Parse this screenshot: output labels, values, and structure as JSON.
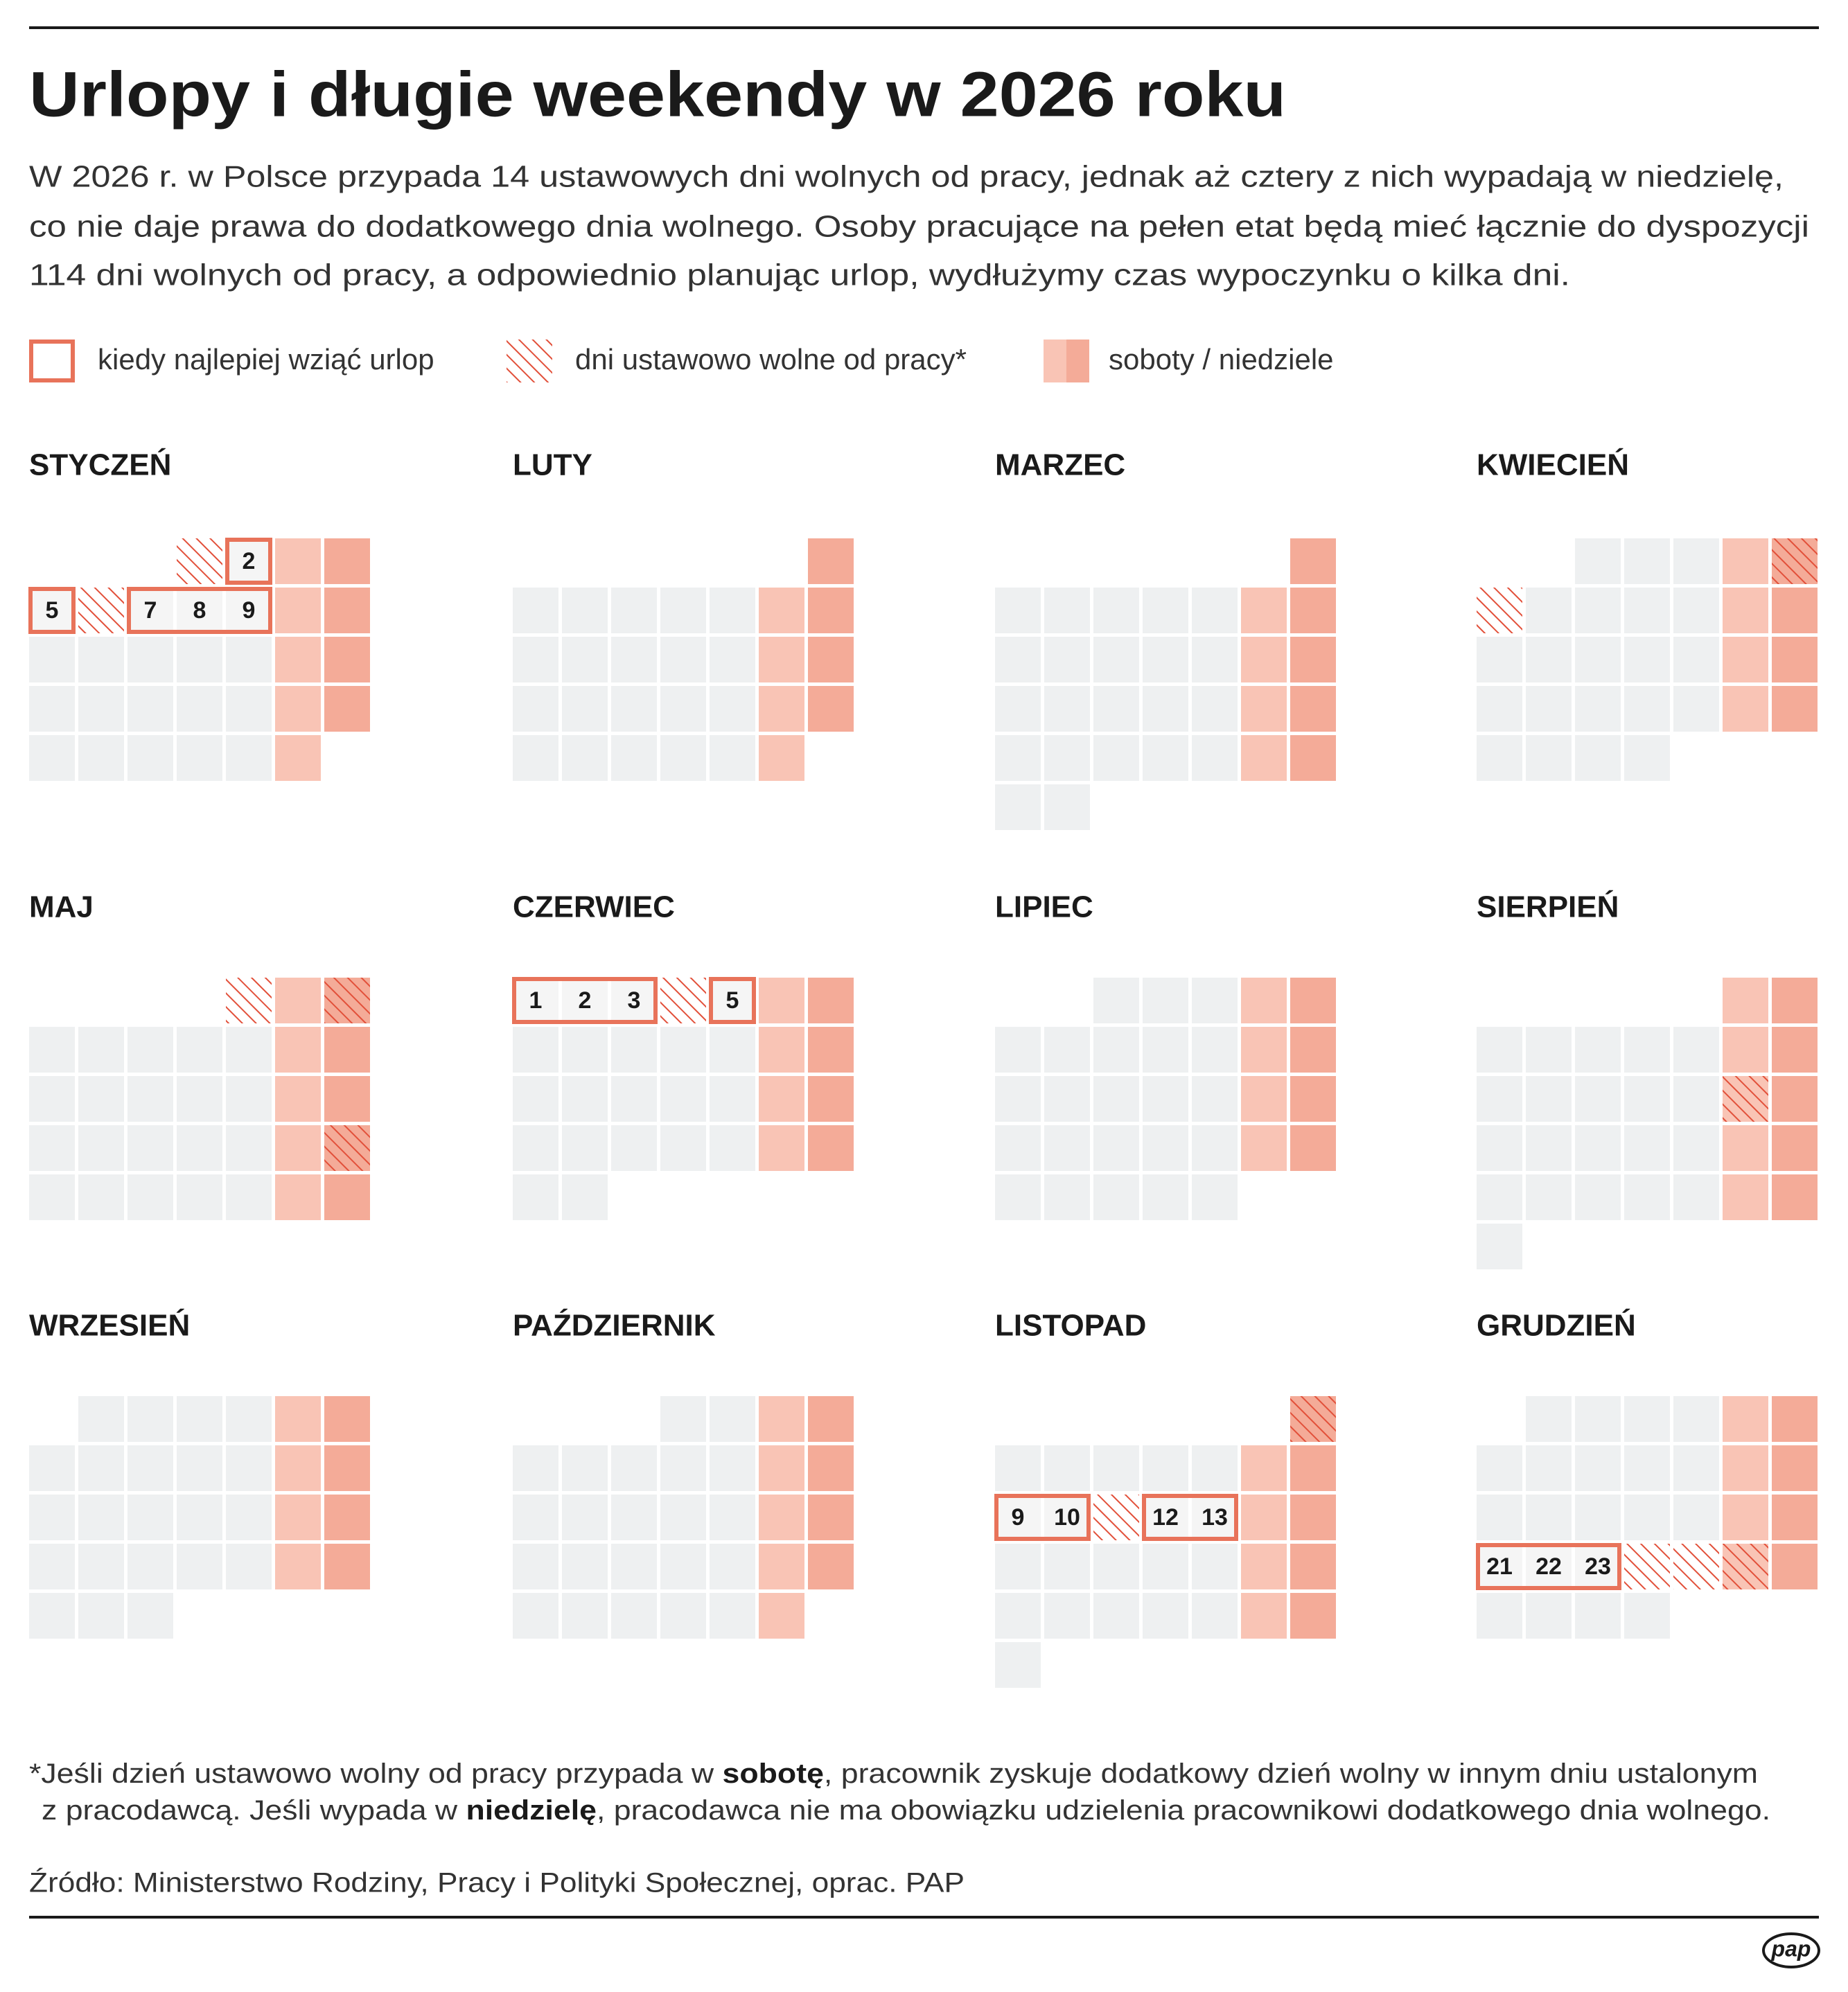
{
  "header": {
    "title": "Urlopy i długie weekendy w 2026 roku",
    "description": [
      "W 2026 r. w Polsce przypada 14 ustawowych dni wolnych od pracy, jednak aż cztery z nich wypadają w niedzielę,",
      "co nie daje prawa do dodatkowego dnia wolnego. Osoby pracujące na pełen etat będą mieć łącznie do dyspozycji",
      "114 dni wolnych od pracy, a odpowiednio planując urlop, wydłużymy czas wypoczynku o kilka dni."
    ]
  },
  "legend": [
    "kiedy najlepiej wziąć urlop",
    "dni ustawowo wolne od pracy*",
    "soboty / niedziele"
  ],
  "months": [
    {
      "name": "STYCZEŃ",
      "boxes": [
        [
          2
        ],
        [
          5
        ],
        [
          7,
          8,
          9
        ]
      ]
    },
    {
      "name": "LUTY",
      "boxes": []
    },
    {
      "name": "MARZEC",
      "boxes": []
    },
    {
      "name": "KWIECIEŃ",
      "boxes": []
    },
    {
      "name": "MAJ",
      "boxes": []
    },
    {
      "name": "CZERWIEC",
      "boxes": [
        [
          1,
          2,
          3
        ],
        [
          5
        ]
      ]
    },
    {
      "name": "LIPIEC",
      "boxes": []
    },
    {
      "name": "SIERPIEŃ",
      "boxes": []
    },
    {
      "name": "WRZESIEŃ",
      "boxes": []
    },
    {
      "name": "PAŹDZIERNIK",
      "boxes": []
    },
    {
      "name": "LISTOPAD",
      "boxes": [
        [
          9,
          10
        ],
        [
          12,
          13
        ]
      ]
    },
    {
      "name": "GRUDZIEŃ",
      "boxes": [
        [
          21,
          22,
          23
        ]
      ]
    }
  ],
  "footnote": [
    "*Jeśli dzień ustawowo wolny od pracy przypada w ",
    "sobotę",
    ", pracownik zyskuje dodatkowy dzień wolny w innym dniu ustalonym",
    "z pracodawcą. Jeśli wypada w ",
    "niedzielę",
    ", pracodawca nie ma obowiązku udzielenia pracownikowi dodatkowego dnia wolnego."
  ],
  "source": "Źródło: Ministerstwo Rodziny, Pracy i Polityki Społecznej, oprac. PAP",
  "logo": "pap"
}
